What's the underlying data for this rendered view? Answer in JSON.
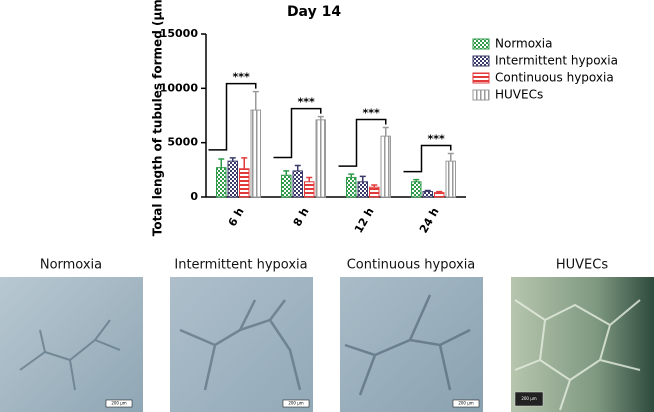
{
  "chart_data": {
    "type": "bar",
    "title": "Day 14",
    "y_label": "Total length of tubules formed (μm)",
    "categories": [
      "6 h",
      "8 h",
      "12 h",
      "24 h"
    ],
    "series": [
      {
        "name": "Normoxia",
        "color": "#2e9a4a",
        "pattern": "checker",
        "values": [
          2700,
          2000,
          1800,
          1400
        ],
        "errors": [
          800,
          400,
          300,
          200
        ]
      },
      {
        "name": "Intermittent hypoxia",
        "color": "#3a3a6a",
        "pattern": "checker",
        "values": [
          3300,
          2400,
          1400,
          500
        ],
        "errors": [
          300,
          500,
          500,
          100
        ]
      },
      {
        "name": "Continuous hypoxia",
        "color": "#e23a3a",
        "pattern": "hstripe",
        "values": [
          2600,
          1400,
          900,
          400
        ],
        "errors": [
          1000,
          400,
          200,
          100
        ]
      },
      {
        "name": "HUVECs",
        "color": "#9a9a9a",
        "pattern": "vstripe",
        "values": [
          8000,
          7100,
          5600,
          3300
        ],
        "errors": [
          1700,
          300,
          800,
          700
        ]
      }
    ],
    "annotations": [
      "***",
      "***",
      "***",
      "***"
    ],
    "ylim": [
      0,
      15000
    ],
    "yticks": [
      0,
      5000,
      10000,
      15000
    ],
    "legend": "upper-right"
  },
  "panels": [
    {
      "label": "Normoxia",
      "scale_bar": "200 μm"
    },
    {
      "label": "Intermittent hypoxia",
      "scale_bar": "200 μm"
    },
    {
      "label": "Continuous hypoxia",
      "scale_bar": "200 μm"
    },
    {
      "label": "HUVECs",
      "scale_bar": "200 μm"
    }
  ]
}
